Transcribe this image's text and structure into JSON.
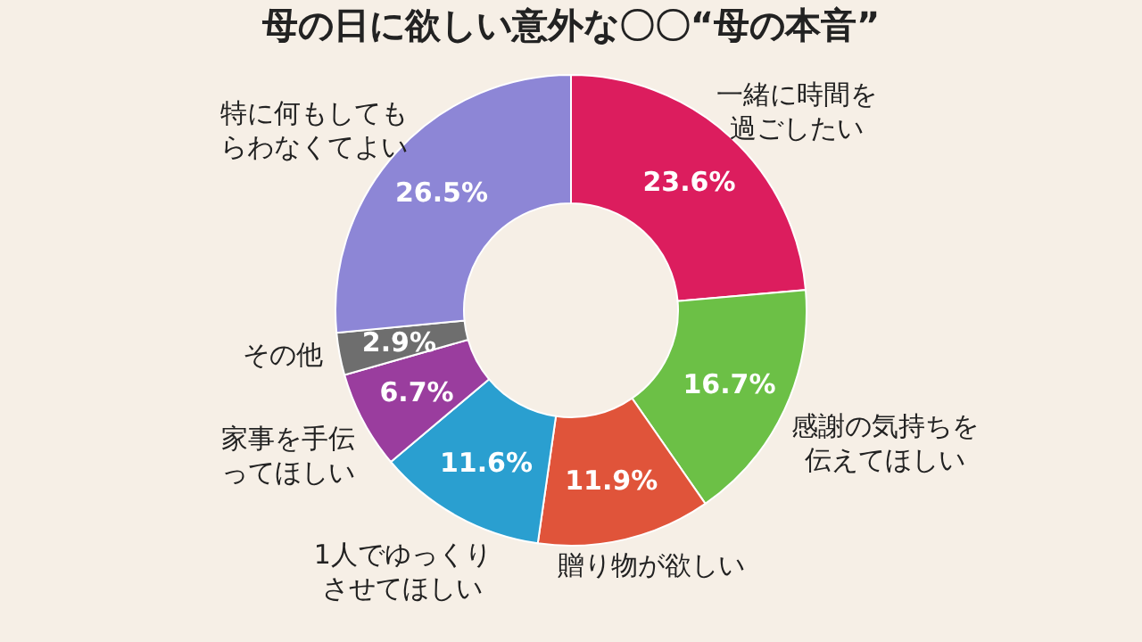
{
  "chart_data": {
    "type": "donut",
    "title": "母の日に欲しい意外な〇〇“母の本音”",
    "categories": [
      "一緒に時間を過ごしたい",
      "感謝の気持ちを伝えてほしい",
      "贈り物が欲しい",
      "1人でゆっくりさせてほしい",
      "家事を手伝ってほしい",
      "その他",
      "特に何もしてもらわなくてよい"
    ],
    "values": [
      23.6,
      16.7,
      11.9,
      11.6,
      6.7,
      2.9,
      26.5
    ],
    "value_labels": [
      "23.6%",
      "16.7%",
      "11.9%",
      "11.6%",
      "6.7%",
      "2.9%",
      "26.5%"
    ],
    "colors": [
      "#dc1d5e",
      "#6cc046",
      "#e0543a",
      "#2a9fd0",
      "#9a3d9e",
      "#6e6e6e",
      "#8d86d6"
    ],
    "legend": false
  }
}
